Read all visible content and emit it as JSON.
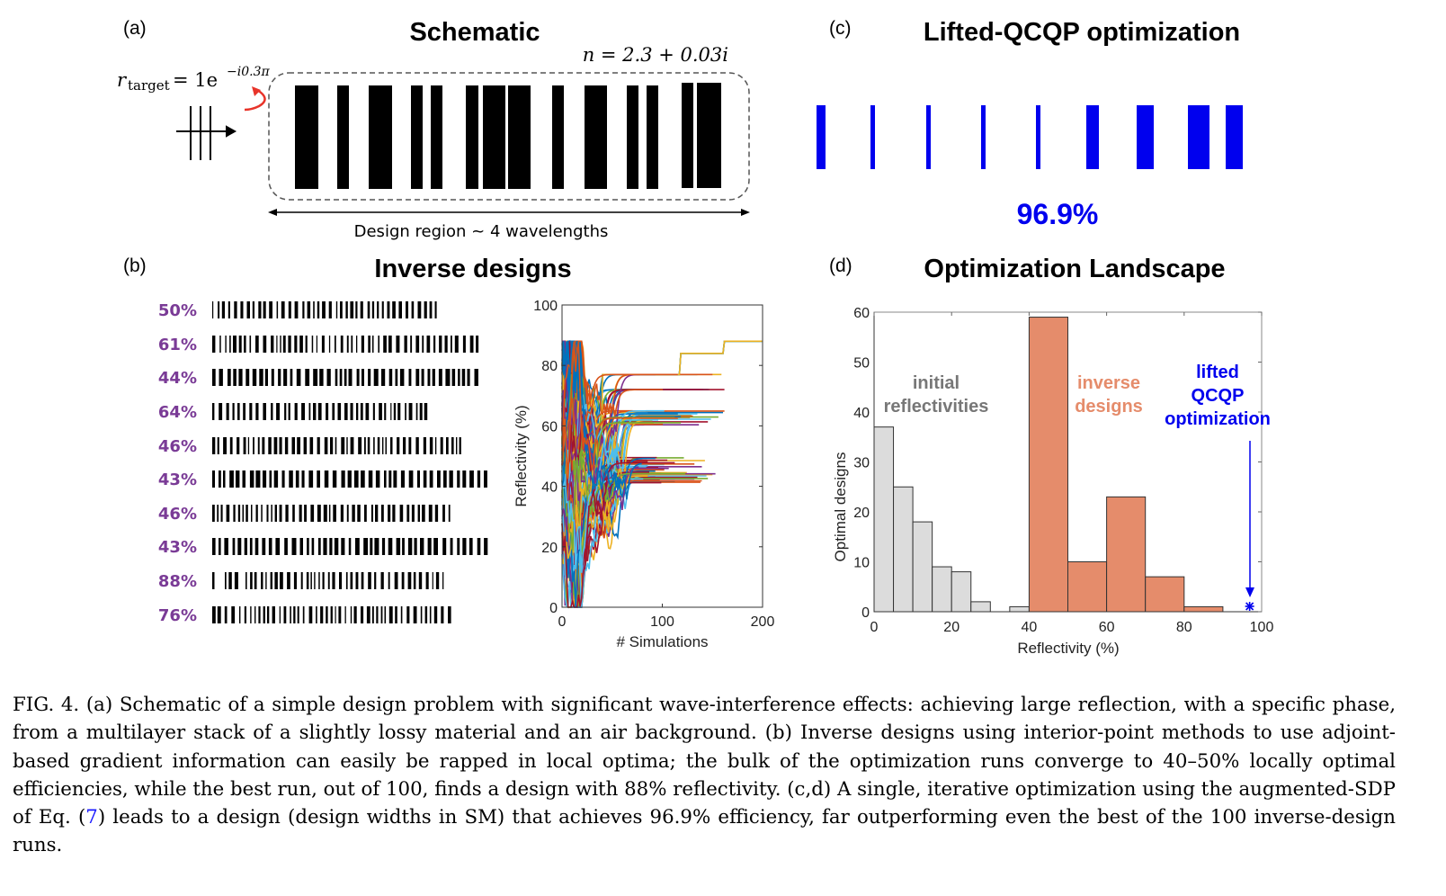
{
  "panel_a": {
    "label": "(a)",
    "title": "Schematic",
    "r_target": "r",
    "r_target_sub": "target",
    "r_target_eq": "= 1e",
    "r_target_exp": "−i0.3π",
    "index": "n = 2.3 + 0.03i",
    "design_region": "Design region ~ 4 wavelengths",
    "arrow_color": "#e8342a"
  },
  "panel_b": {
    "label": "(b)",
    "title": "Inverse designs",
    "efficiencies": [
      "50%",
      "61%",
      "44%",
      "64%",
      "46%",
      "43%",
      "46%",
      "43%",
      "88%",
      "76%"
    ],
    "label_color": "#7a3b96"
  },
  "panel_c": {
    "label": "(c)",
    "title": "Lifted-QCQP optimization",
    "efficiency": "96.9%",
    "color": "#0000ee"
  },
  "panel_d": {
    "label": "(d)",
    "title": "Optimization Landscape",
    "annotations": {
      "initial": [
        "initial",
        "reflectivities"
      ],
      "inverse": [
        "inverse",
        "designs"
      ],
      "lifted": [
        "lifted",
        "QCQP",
        "optimization"
      ]
    }
  },
  "chart_data": [
    {
      "type": "line",
      "xlabel": "# Simulations",
      "ylabel": "Reflectivity (%)",
      "xlim": [
        0,
        200
      ],
      "ylim": [
        0,
        100
      ],
      "xticks": [
        "0",
        "100",
        "200"
      ],
      "yticks": [
        "0",
        "20",
        "40",
        "60",
        "80",
        "100"
      ],
      "grid": false,
      "series_count": 100,
      "final_plateaus": [
        41,
        42,
        43,
        44,
        45,
        46,
        47,
        48,
        49,
        50,
        60,
        61,
        62,
        63,
        64,
        65,
        72,
        77,
        88
      ],
      "colors": [
        "#0072bd",
        "#d95319",
        "#edb120",
        "#7e2f8e",
        "#77ac30",
        "#4dbeee",
        "#a2142f"
      ]
    },
    {
      "type": "bar",
      "xlabel": "Reflectivity (%)",
      "ylabel": "Optimal designs",
      "xlim": [
        0,
        100
      ],
      "ylim": [
        0,
        60
      ],
      "xticks": [
        "0",
        "20",
        "40",
        "60",
        "80",
        "100"
      ],
      "yticks": [
        "0",
        "10",
        "20",
        "30",
        "40",
        "50",
        "60"
      ],
      "grid": false,
      "series": [
        {
          "name": "initial reflectivities",
          "color": "#dcdcdc",
          "bins": [
            [
              0,
              5
            ],
            [
              5,
              10
            ],
            [
              10,
              15
            ],
            [
              15,
              20
            ],
            [
              20,
              25
            ],
            [
              25,
              30
            ],
            [
              35,
              40
            ]
          ],
          "values": [
            37,
            25,
            18,
            9,
            8,
            2,
            1
          ]
        },
        {
          "name": "inverse designs",
          "color": "#e58c6b",
          "bins": [
            [
              40,
              50
            ],
            [
              50,
              60
            ],
            [
              60,
              70
            ],
            [
              70,
              80
            ],
            [
              80,
              90
            ]
          ],
          "values": [
            59,
            10,
            23,
            7,
            1
          ]
        },
        {
          "name": "lifted QCQP optimization",
          "color": "#0000ee",
          "x": [
            96.9
          ],
          "values": [
            0
          ]
        }
      ]
    }
  ],
  "caption": {
    "lead": "FIG. 4. (a) Schematic of a simple design problem with significant wave-interference effects: achieving large reflection, with a specific phase, from a multilayer stack of a slightly lossy material and an air background. (b) Inverse designs using interior-point methods to use adjoint-based gradient information can easily be rapped in local optima; the bulk of the optimization runs converge to 40–50% locally optimal efficiencies, while the best run, out of 100, finds a design with 88% reflectivity. (c,d) A single, iterative optimization using the augmented-SDP of Eq. (",
    "eq_ref": "7",
    "tail": ") leads to a design (design widths in SM) that achieves 96.9% efficiency, far outperforming even the best of the 100 inverse-design runs."
  }
}
